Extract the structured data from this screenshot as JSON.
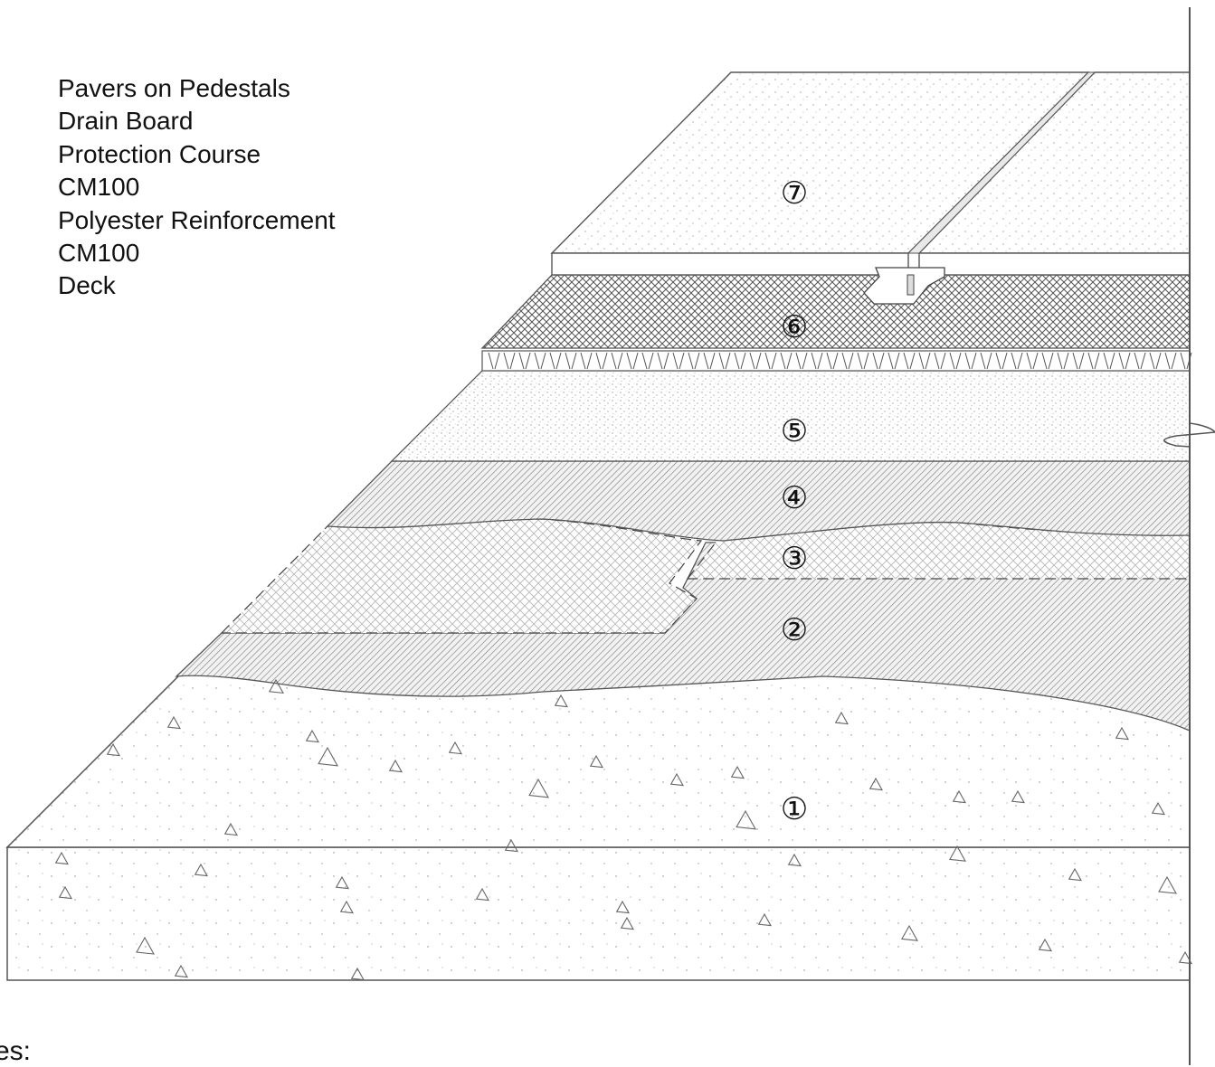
{
  "legend": {
    "items": [
      "Pavers on Pedestals",
      "Drain Board",
      "Protection Course",
      "CM100",
      "Polyester Reinforcement",
      "CM100",
      "Deck"
    ]
  },
  "layers": {
    "deck": "①",
    "cm100_lower": "②",
    "polyester_reinforcement": "③",
    "cm100_upper": "④",
    "protection_course": "⑤",
    "drain_board": "⑥",
    "pavers": "⑦"
  },
  "footer": {
    "partial_text": "es:"
  },
  "colors": {
    "line": "#4a4a4a",
    "hatch": "#9a9a9a",
    "background": "#ffffff"
  }
}
